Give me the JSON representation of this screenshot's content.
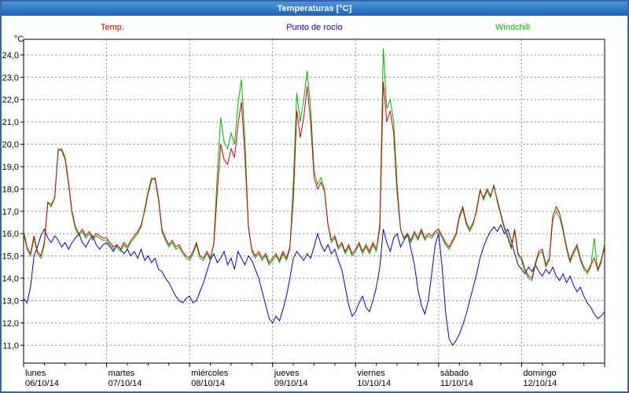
{
  "window": {
    "title": "Temperaturas [°C]"
  },
  "chart_data": {
    "type": "line",
    "title": "Temperaturas [°C]",
    "grid": true,
    "y_axis": {
      "unit": "°C",
      "min": 11,
      "max": 24,
      "step": 1,
      "range_top": 24.7,
      "range_bottom": 10.2,
      "tick_labels": [
        "24,0",
        "23,0",
        "22,0",
        "21,0",
        "20,0",
        "19,0",
        "18,0",
        "17,0",
        "16,0",
        "15,0",
        "14,0",
        "13,0",
        "12,0",
        "11,0"
      ]
    },
    "x_axis": {
      "hours_total": 168,
      "hours_per_day": 24,
      "days": [
        {
          "name": "lunes",
          "date": "06/10/14"
        },
        {
          "name": "martes",
          "date": "07/10/14"
        },
        {
          "name": "miércoles",
          "date": "08/10/14"
        },
        {
          "name": "jueves",
          "date": "09/10/14"
        },
        {
          "name": "viernes",
          "date": "10/10/14"
        },
        {
          "name": "sábado",
          "date": "11/10/14"
        },
        {
          "name": "domingo",
          "date": "12/10/14"
        }
      ]
    },
    "legend": [
      {
        "label": "Temp.",
        "color": "#d40000"
      },
      {
        "label": "Punto de rocío",
        "color": "#0000c8"
      },
      {
        "label": "Windchill",
        "color": "#00b400"
      }
    ],
    "series": [
      {
        "name": "Temp.",
        "color": "#d40000",
        "values": [
          16.1,
          15.4,
          15.1,
          15.9,
          15.2,
          15.0,
          15.6,
          17.4,
          17.3,
          17.6,
          19.7,
          19.8,
          19.4,
          18.3,
          17.0,
          16.3,
          16.0,
          16.2,
          15.9,
          16.1,
          15.8,
          16.0,
          15.9,
          15.8,
          15.8,
          15.6,
          15.4,
          15.5,
          15.3,
          15.6,
          15.4,
          15.7,
          15.9,
          16.1,
          16.4,
          17.0,
          17.8,
          18.4,
          18.5,
          17.6,
          16.2,
          15.8,
          15.5,
          15.7,
          15.4,
          15.5,
          15.2,
          15.0,
          14.9,
          15.2,
          15.6,
          15.0,
          14.9,
          15.2,
          14.9,
          15.5,
          17.8,
          20.0,
          19.3,
          19.1,
          19.8,
          19.4,
          20.9,
          21.9,
          19.5,
          16.3,
          15.3,
          15.0,
          15.2,
          14.9,
          15.1,
          14.7,
          14.9,
          15.1,
          14.8,
          15.2,
          14.9,
          15.4,
          17.5,
          21.5,
          20.3,
          21.2,
          22.6,
          21.0,
          18.5,
          18.0,
          18.3,
          17.9,
          16.4,
          15.7,
          15.9,
          15.4,
          15.6,
          15.2,
          15.5,
          15.1,
          15.3,
          15.6,
          15.2,
          15.5,
          15.2,
          15.6,
          15.3,
          16.2,
          22.8,
          21.0,
          21.5,
          20.5,
          17.8,
          16.2,
          15.8,
          16.0,
          15.7,
          16.1,
          15.8,
          16.2,
          15.8,
          16.0,
          15.9,
          16.1,
          16.2,
          15.9,
          15.6,
          15.4,
          15.7,
          16.0,
          16.8,
          17.2,
          16.5,
          16.2,
          16.5,
          17.0,
          17.9,
          17.6,
          18.0,
          17.7,
          18.1,
          17.5,
          16.9,
          16.3,
          15.9,
          15.4,
          16.2,
          15.1,
          14.9,
          14.4,
          14.1,
          14.0,
          14.7,
          15.2,
          15.3,
          14.6,
          14.9,
          16.8,
          17.2,
          16.9,
          16.2,
          15.4,
          14.8,
          15.2,
          15.5,
          14.9,
          14.5,
          14.3,
          14.6,
          14.9,
          14.4,
          14.8,
          15.4
        ]
      },
      {
        "name": "Punto de rocío",
        "color": "#0000c8",
        "values": [
          13.1,
          12.9,
          13.6,
          15.0,
          15.4,
          15.9,
          16.2,
          15.8,
          15.6,
          15.9,
          15.7,
          15.4,
          15.6,
          15.3,
          15.6,
          15.8,
          16.0,
          15.6,
          15.4,
          15.7,
          15.9,
          15.5,
          15.3,
          15.5,
          15.6,
          15.4,
          15.2,
          15.5,
          15.3,
          15.1,
          15.3,
          15.0,
          15.2,
          14.9,
          15.3,
          14.8,
          15.0,
          14.7,
          14.9,
          14.4,
          14.3,
          14.0,
          13.8,
          13.5,
          13.2,
          13.0,
          12.9,
          13.1,
          13.2,
          12.9,
          13.0,
          13.4,
          13.8,
          14.3,
          14.8,
          15.1,
          14.7,
          14.9,
          15.2,
          14.6,
          14.9,
          14.4,
          15.2,
          14.9,
          14.6,
          15.0,
          14.8,
          14.4,
          14.0,
          13.4,
          12.8,
          12.2,
          12.0,
          12.3,
          12.1,
          12.6,
          13.2,
          14.0,
          14.9,
          15.2,
          15.0,
          14.8,
          15.1,
          14.9,
          15.4,
          16.0,
          15.5,
          15.2,
          15.5,
          15.1,
          15.3,
          14.8,
          14.4,
          13.6,
          12.8,
          12.3,
          12.5,
          12.9,
          13.2,
          12.7,
          12.5,
          13.0,
          13.6,
          14.5,
          16.2,
          15.6,
          15.2,
          15.8,
          16.0,
          15.4,
          15.7,
          16.0,
          15.3,
          14.6,
          13.5,
          12.8,
          12.4,
          13.0,
          14.2,
          15.5,
          16.0,
          14.5,
          12.5,
          11.3,
          11.0,
          11.2,
          11.5,
          11.9,
          12.4,
          13.0,
          13.6,
          14.2,
          14.9,
          15.4,
          15.8,
          16.1,
          16.3,
          16.1,
          16.4,
          16.0,
          16.2,
          15.7,
          15.1,
          14.6,
          14.4,
          14.2,
          14.5,
          14.3,
          14.6,
          14.3,
          14.1,
          14.4,
          14.2,
          14.5,
          14.1,
          13.9,
          14.2,
          13.8,
          14.1,
          13.7,
          13.4,
          13.6,
          13.2,
          12.9,
          12.7,
          12.4,
          12.2,
          12.3,
          12.5
        ]
      },
      {
        "name": "Windchill",
        "color": "#00b400",
        "values": [
          16.0,
          15.3,
          15.0,
          15.8,
          15.1,
          14.9,
          15.5,
          17.4,
          17.2,
          17.6,
          19.8,
          19.7,
          19.3,
          18.2,
          16.9,
          16.2,
          15.9,
          16.1,
          15.8,
          16.0,
          15.7,
          15.9,
          15.8,
          15.7,
          15.7,
          15.5,
          15.3,
          15.4,
          15.2,
          15.5,
          15.3,
          15.6,
          15.8,
          16.0,
          16.3,
          17.1,
          17.9,
          18.5,
          18.4,
          17.5,
          16.1,
          15.7,
          15.4,
          15.6,
          15.3,
          15.4,
          15.1,
          14.9,
          14.8,
          15.1,
          15.5,
          14.9,
          14.8,
          15.1,
          14.8,
          15.6,
          18.6,
          21.2,
          20.1,
          19.8,
          20.5,
          20.0,
          21.8,
          22.9,
          20.2,
          16.4,
          15.2,
          14.9,
          15.1,
          14.8,
          15.0,
          14.6,
          14.8,
          15.0,
          14.7,
          15.1,
          14.8,
          15.3,
          18.3,
          22.3,
          21.0,
          22.0,
          23.3,
          21.6,
          18.8,
          18.2,
          18.5,
          18.0,
          16.4,
          15.6,
          15.8,
          15.3,
          15.5,
          15.1,
          15.4,
          15.0,
          15.2,
          15.5,
          15.1,
          15.4,
          15.1,
          15.5,
          15.2,
          16.5,
          24.3,
          21.6,
          22.0,
          21.0,
          18.2,
          16.2,
          15.7,
          15.9,
          15.6,
          16.0,
          15.7,
          16.1,
          15.7,
          15.9,
          15.8,
          16.0,
          16.1,
          15.8,
          15.5,
          15.3,
          15.6,
          15.9,
          16.7,
          17.1,
          16.4,
          16.1,
          16.4,
          17.1,
          18.0,
          17.5,
          17.9,
          17.6,
          18.2,
          17.4,
          16.8,
          16.2,
          15.8,
          15.3,
          16.1,
          15.0,
          14.8,
          14.3,
          14.0,
          13.9,
          14.6,
          15.1,
          15.2,
          14.5,
          14.8,
          16.6,
          17.0,
          16.7,
          16.1,
          15.3,
          14.7,
          15.1,
          15.4,
          14.8,
          14.4,
          14.2,
          14.5,
          15.8,
          14.3,
          14.7,
          15.6
        ]
      }
    ]
  }
}
